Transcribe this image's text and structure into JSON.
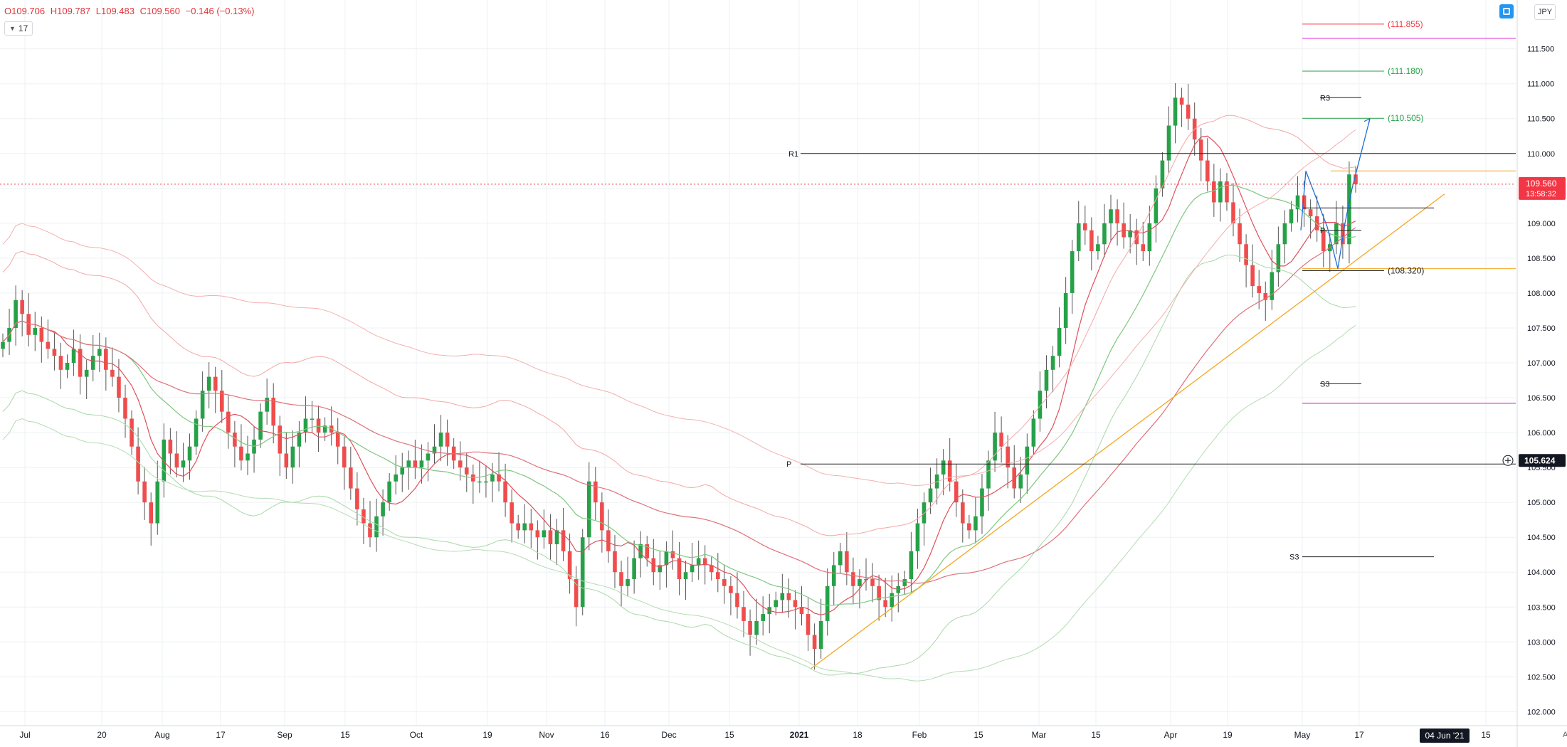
{
  "header": {
    "open": "O109.706",
    "high": "H109.787",
    "low": "L109.483",
    "close": "C109.560",
    "change": "−0.146 (−0.13%)",
    "interval": "17",
    "currency": "JPY",
    "auto_label": "A"
  },
  "colors": {
    "bull": "#26a148",
    "bear": "#ef4d4d",
    "accent_red": "#f23645",
    "trendline": "#f5a623",
    "projection": "#1e6fd8",
    "magenta": "#e040e0"
  },
  "chart_data": {
    "type": "candlestick",
    "y_range": [
      101.8,
      112.2
    ],
    "y_ticks": [
      "111.500",
      "111.000",
      "110.500",
      "110.000",
      "109.500",
      "109.000",
      "108.500",
      "108.000",
      "107.500",
      "107.000",
      "106.500",
      "106.000",
      "105.500",
      "105.000",
      "104.500",
      "104.000",
      "103.500",
      "103.000",
      "102.500",
      "102.000"
    ],
    "x_ticks": [
      "Jul",
      "20",
      "Aug",
      "17",
      "Sep",
      "15",
      "Oct",
      "19",
      "Nov",
      "16",
      "Dec",
      "15",
      "2021",
      "18",
      "Feb",
      "15",
      "Mar",
      "15",
      "Apr",
      "19",
      "May",
      "17",
      "15"
    ],
    "x_highlight": "04 Jun '21",
    "last_price": "109.560",
    "countdown": "13:58:32",
    "crosshair_price": "105.624",
    "pivot_labels": [
      {
        "label": "R1",
        "value": 110.0
      },
      {
        "label": "P",
        "value": 105.55
      },
      {
        "label": "R3",
        "value": 110.8
      },
      {
        "label": "P",
        "value": 108.9
      },
      {
        "label": "S3",
        "value": 106.7
      },
      {
        "label": "S3",
        "value": 104.22
      }
    ],
    "level_labels": [
      {
        "label": "(111.855)",
        "value": 111.855
      },
      {
        "label": "(111.180)",
        "value": 111.18
      },
      {
        "label": "(110.505)",
        "value": 110.505
      },
      {
        "label": "(108.320)",
        "value": 108.32
      }
    ],
    "magenta_levels": [
      111.65,
      106.42
    ],
    "orange_level": 109.75,
    "black_level": 109.22,
    "series_close": [
      107.3,
      107.5,
      107.9,
      107.7,
      107.4,
      107.5,
      107.3,
      107.2,
      107.1,
      106.9,
      107.0,
      107.2,
      106.8,
      106.9,
      107.1,
      107.2,
      106.9,
      106.8,
      106.5,
      106.2,
      105.8,
      105.3,
      105.0,
      104.7,
      105.3,
      105.9,
      105.7,
      105.5,
      105.6,
      105.8,
      106.2,
      106.6,
      106.8,
      106.6,
      106.3,
      106.0,
      105.8,
      105.6,
      105.7,
      105.9,
      106.3,
      106.5,
      106.1,
      105.7,
      105.5,
      105.8,
      106.0,
      106.2,
      106.2,
      106.0,
      106.1,
      106.0,
      105.8,
      105.5,
      105.2,
      104.9,
      104.7,
      104.5,
      104.8,
      105.0,
      105.3,
      105.4,
      105.5,
      105.6,
      105.5,
      105.6,
      105.7,
      105.8,
      106.0,
      105.8,
      105.6,
      105.5,
      105.4,
      105.3,
      105.3,
      105.3,
      105.4,
      105.3,
      105.0,
      104.7,
      104.6,
      104.7,
      104.6,
      104.5,
      104.6,
      104.4,
      104.6,
      104.3,
      103.9,
      103.5,
      104.5,
      105.3,
      105.0,
      104.6,
      104.3,
      104.0,
      103.8,
      103.9,
      104.2,
      104.4,
      104.2,
      104.0,
      104.1,
      104.3,
      104.2,
      103.9,
      104.0,
      104.1,
      104.2,
      104.1,
      104.0,
      103.9,
      103.8,
      103.7,
      103.5,
      103.3,
      103.1,
      103.3,
      103.4,
      103.5,
      103.6,
      103.7,
      103.6,
      103.5,
      103.4,
      103.1,
      102.9,
      103.3,
      103.8,
      104.1,
      104.3,
      104.0,
      103.8,
      103.9,
      103.9,
      103.8,
      103.6,
      103.5,
      103.7,
      103.8,
      103.9,
      104.3,
      104.7,
      105.0,
      105.2,
      105.4,
      105.6,
      105.3,
      105.0,
      104.7,
      104.6,
      104.8,
      105.2,
      105.6,
      106.0,
      105.8,
      105.5,
      105.2,
      105.4,
      105.8,
      106.2,
      106.6,
      106.9,
      107.1,
      107.5,
      108.0,
      108.6,
      109.0,
      108.9,
      108.6,
      108.7,
      109.0,
      109.2,
      109.0,
      108.8,
      108.9,
      108.7,
      108.6,
      109.0,
      109.5,
      109.9,
      110.4,
      110.8,
      110.7,
      110.5,
      110.2,
      109.9,
      109.6,
      109.3,
      109.6,
      109.3,
      109.0,
      108.7,
      108.4,
      108.1,
      108.0,
      107.9,
      108.3,
      108.7,
      109.0,
      109.2,
      109.4,
      109.2,
      109.1,
      108.9,
      108.6,
      108.7,
      109.0,
      108.7,
      109.7,
      109.56
    ]
  }
}
